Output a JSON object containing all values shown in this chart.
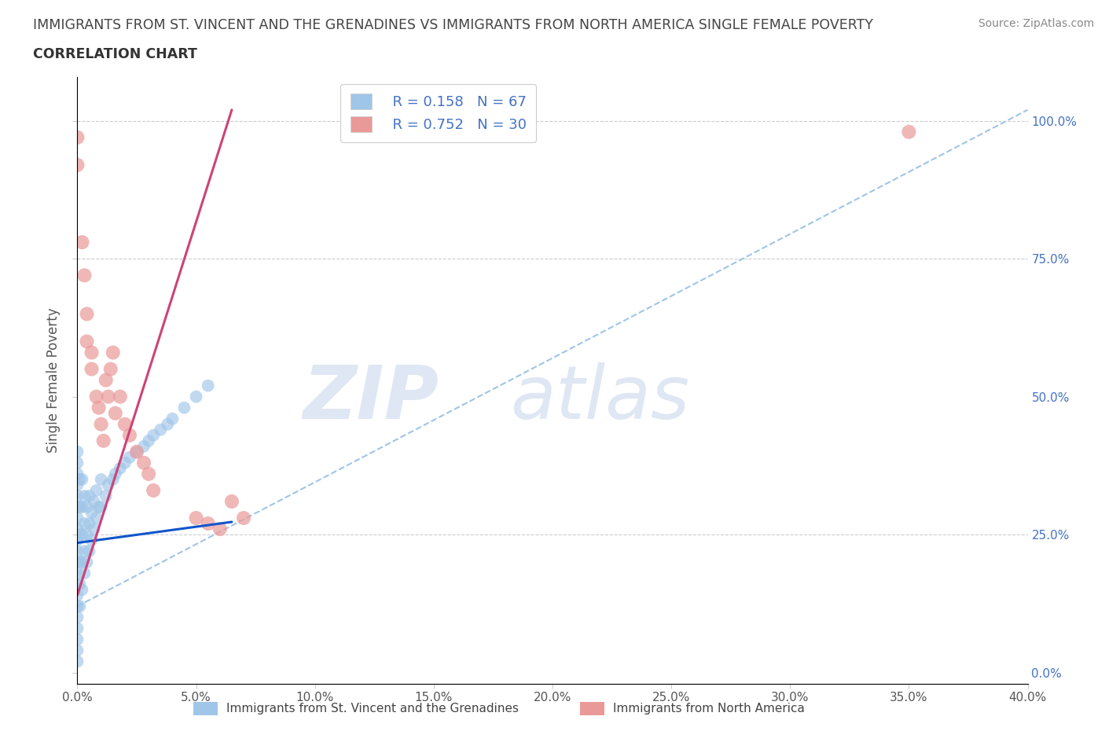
{
  "title_line1": "IMMIGRANTS FROM ST. VINCENT AND THE GRENADINES VS IMMIGRANTS FROM NORTH AMERICA SINGLE FEMALE POVERTY",
  "title_line2": "CORRELATION CHART",
  "source": "Source: ZipAtlas.com",
  "ylabel": "Single Female Poverty",
  "legend_blue_r": "0.158",
  "legend_blue_n": "67",
  "legend_pink_r": "0.752",
  "legend_pink_n": "30",
  "legend_blue_label": "Immigrants from St. Vincent and the Grenadines",
  "legend_pink_label": "Immigrants from North America",
  "blue_color": "#9fc5e8",
  "pink_color": "#ea9999",
  "blue_line_color": "#1155cc",
  "pink_line_color": "#cc4477",
  "dashed_line_color": "#9fc5e8",
  "blue_points_x": [
    0.0,
    0.0,
    0.0,
    0.0,
    0.0,
    0.0,
    0.0,
    0.0,
    0.0,
    0.0,
    0.0,
    0.0,
    0.0,
    0.0,
    0.0,
    0.0,
    0.0,
    0.0,
    0.0,
    0.0,
    0.001,
    0.001,
    0.001,
    0.001,
    0.001,
    0.001,
    0.002,
    0.002,
    0.002,
    0.002,
    0.002,
    0.003,
    0.003,
    0.003,
    0.003,
    0.004,
    0.004,
    0.004,
    0.005,
    0.005,
    0.005,
    0.006,
    0.006,
    0.007,
    0.007,
    0.008,
    0.008,
    0.009,
    0.01,
    0.01,
    0.012,
    0.013,
    0.015,
    0.016,
    0.018,
    0.02,
    0.022,
    0.025,
    0.028,
    0.03,
    0.032,
    0.035,
    0.038,
    0.04,
    0.045,
    0.05,
    0.055
  ],
  "blue_points_y": [
    0.02,
    0.04,
    0.06,
    0.08,
    0.1,
    0.12,
    0.14,
    0.16,
    0.18,
    0.2,
    0.22,
    0.24,
    0.26,
    0.28,
    0.3,
    0.32,
    0.34,
    0.36,
    0.38,
    0.4,
    0.12,
    0.16,
    0.2,
    0.25,
    0.3,
    0.35,
    0.15,
    0.2,
    0.25,
    0.3,
    0.35,
    0.18,
    0.22,
    0.27,
    0.32,
    0.2,
    0.25,
    0.3,
    0.22,
    0.27,
    0.32,
    0.24,
    0.29,
    0.26,
    0.31,
    0.28,
    0.33,
    0.3,
    0.3,
    0.35,
    0.32,
    0.34,
    0.35,
    0.36,
    0.37,
    0.38,
    0.39,
    0.4,
    0.41,
    0.42,
    0.43,
    0.44,
    0.45,
    0.46,
    0.48,
    0.5,
    0.52
  ],
  "pink_points_x": [
    0.0,
    0.0,
    0.002,
    0.003,
    0.004,
    0.004,
    0.006,
    0.006,
    0.008,
    0.009,
    0.01,
    0.011,
    0.012,
    0.013,
    0.014,
    0.015,
    0.016,
    0.018,
    0.02,
    0.022,
    0.025,
    0.028,
    0.03,
    0.032,
    0.05,
    0.055,
    0.06,
    0.065,
    0.07,
    0.35
  ],
  "pink_points_y": [
    0.92,
    0.97,
    0.78,
    0.72,
    0.6,
    0.65,
    0.58,
    0.55,
    0.5,
    0.48,
    0.45,
    0.42,
    0.53,
    0.5,
    0.55,
    0.58,
    0.47,
    0.5,
    0.45,
    0.43,
    0.4,
    0.38,
    0.36,
    0.33,
    0.28,
    0.27,
    0.26,
    0.31,
    0.28,
    0.98
  ],
  "xlim": [
    0.0,
    0.4
  ],
  "ylim": [
    -0.02,
    1.08
  ],
  "yticks": [
    0.0,
    0.25,
    0.5,
    0.75,
    1.0
  ],
  "xticks": [
    0.0,
    0.05,
    0.1,
    0.15,
    0.2,
    0.25,
    0.3,
    0.35,
    0.4
  ],
  "blue_line_x0": 0.0,
  "blue_line_y0": 0.235,
  "blue_line_x1": 0.06,
  "blue_line_y1": 0.27,
  "pink_line_x0": 0.0,
  "pink_line_y0": 0.14,
  "pink_line_x1": 0.065,
  "pink_line_y1": 1.02,
  "dash_line_x0": 0.0,
  "dash_line_y0": 0.12,
  "dash_line_x1": 0.4,
  "dash_line_y1": 1.02
}
